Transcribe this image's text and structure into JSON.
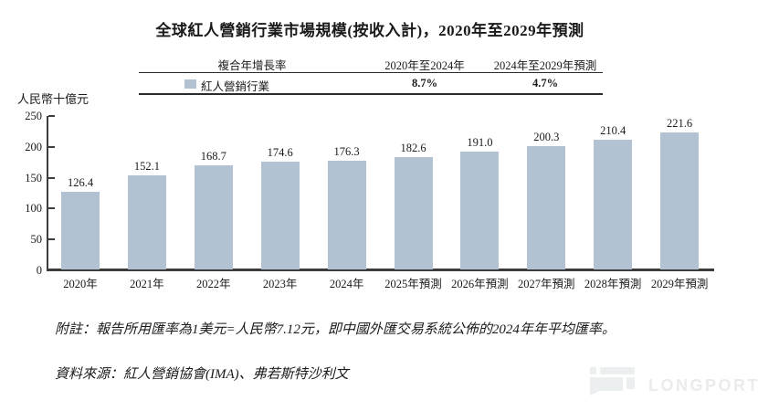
{
  "title": "全球紅人營銷行業市場規模(按收入計)，2020年至2029年預測",
  "cagr_table": {
    "metric_header": "複合年增長率",
    "period1_header": "2020年至2024年",
    "period2_header": "2024年至2029年預測",
    "series_label": "紅人營銷行業",
    "period1_value": "8.7%",
    "period2_value": "4.7%"
  },
  "y_axis": {
    "unit": "人民幣十億元",
    "ticks": [
      250,
      200,
      150,
      100,
      50,
      0
    ]
  },
  "chart_data": {
    "type": "bar",
    "title": "全球紅人營銷行業市場規模(按收入計)，2020年至2029年預測",
    "series_name": "紅人營銷行業",
    "categories": [
      "2020年",
      "2021年",
      "2022年",
      "2023年",
      "2024年",
      "2025年預測",
      "2026年預測",
      "2027年預測",
      "2028年預測",
      "2029年預測"
    ],
    "values": [
      126.4,
      152.1,
      168.7,
      174.6,
      176.3,
      182.6,
      191.0,
      200.3,
      210.4,
      221.6
    ],
    "value_labels": [
      "126.4",
      "152.1",
      "168.7",
      "174.6",
      "176.3",
      "182.6",
      "191.0",
      "200.3",
      "210.4",
      "221.6"
    ],
    "xlabel": "",
    "ylabel": "人民幣十億元",
    "ylim": [
      0,
      250
    ],
    "yticks": [
      0,
      50,
      100,
      150,
      200,
      250
    ],
    "grid": false,
    "legend_position": "table-top",
    "cagr_2020_2024": "8.7%",
    "cagr_2024_2029": "4.7%"
  },
  "footnote": "附註：報告所用匯率為1美元=人民幣7.12元，即中國外匯交易系統公佈的2024年年平均匯率。",
  "source": "資料來源：紅人營銷協會(IMA)、弗若斯特沙利文",
  "watermark": {
    "text": "LONGPORT"
  },
  "colors": {
    "bar": "#b3c2d2",
    "axis": "#3c3c3c",
    "text": "#1a1a1a",
    "watermark": "#ecefef",
    "watermark_text": "#eaecec"
  }
}
